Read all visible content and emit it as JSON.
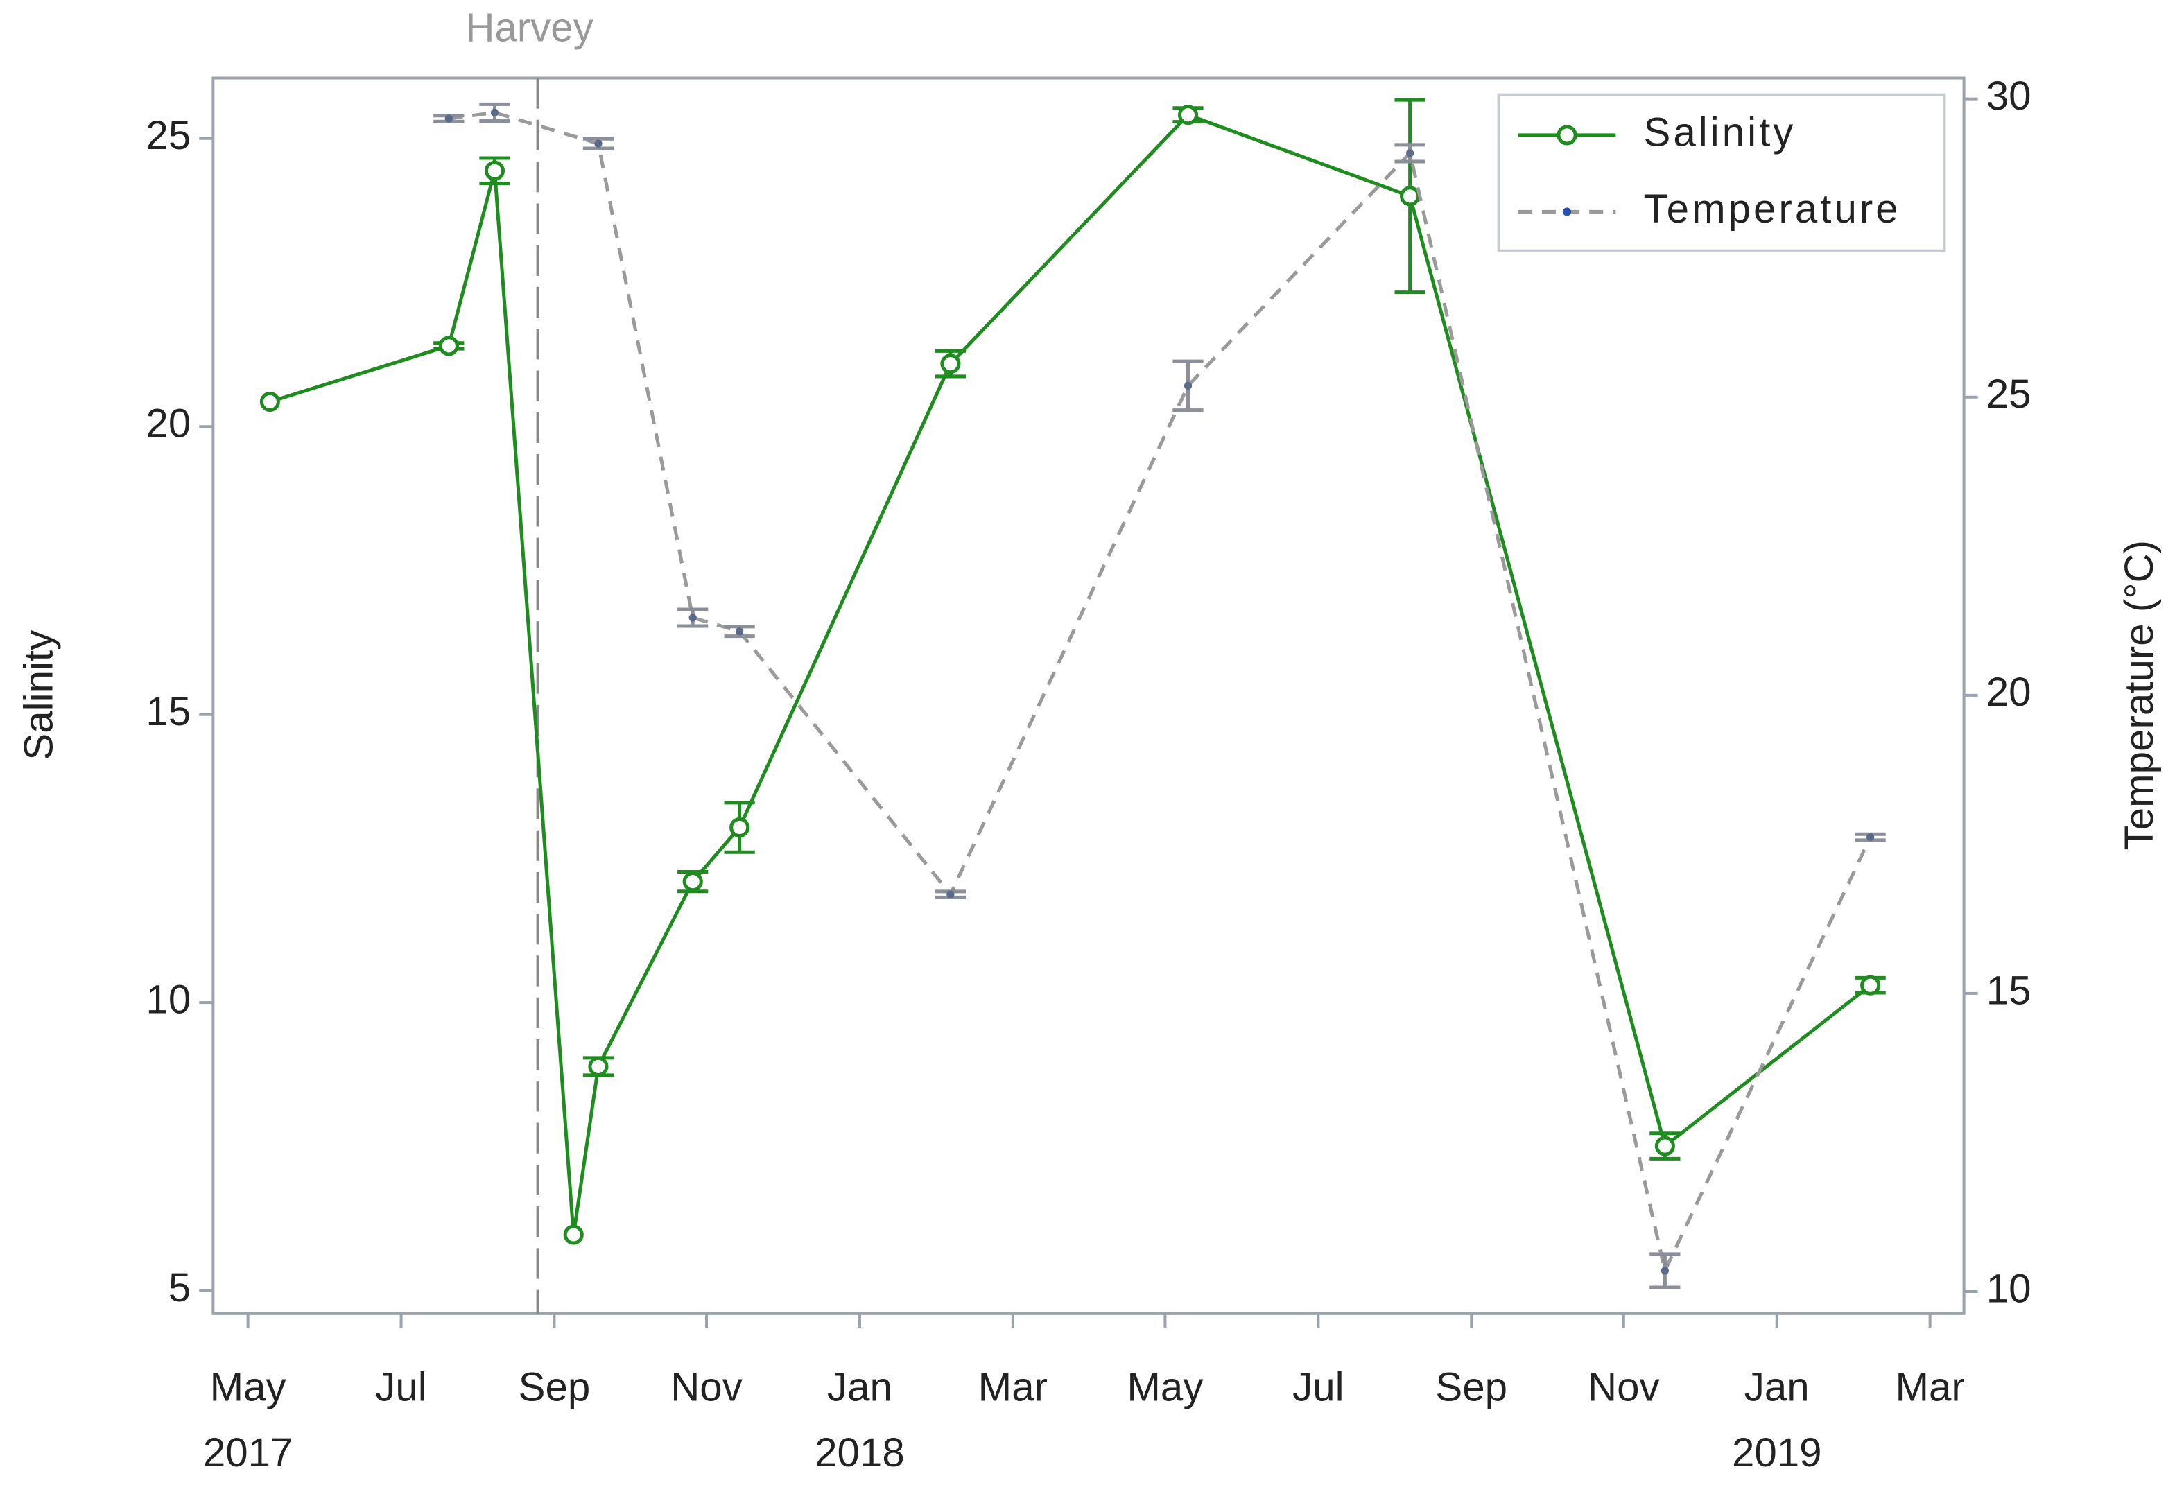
{
  "chart_data": {
    "type": "line",
    "xlim": [
      2017.295,
      2019.204
    ],
    "xticks": [
      {
        "value": 2017.333,
        "label": "May"
      },
      {
        "value": 2017.5,
        "label": "Jul"
      },
      {
        "value": 2017.667,
        "label": "Sep"
      },
      {
        "value": 2017.833,
        "label": "Nov"
      },
      {
        "value": 2018.0,
        "label": "Jan"
      },
      {
        "value": 2018.167,
        "label": "Mar"
      },
      {
        "value": 2018.333,
        "label": "May"
      },
      {
        "value": 2018.5,
        "label": "Jul"
      },
      {
        "value": 2018.667,
        "label": "Sep"
      },
      {
        "value": 2018.833,
        "label": "Nov"
      },
      {
        "value": 2019.0,
        "label": "Jan"
      },
      {
        "value": 2019.167,
        "label": "Mar"
      }
    ],
    "xyear_labels": [
      {
        "value": 2017.333,
        "label": "2017"
      },
      {
        "value": 2018.0,
        "label": "2018"
      },
      {
        "value": 2019.0,
        "label": "2019"
      }
    ],
    "ylabel": "Salinity",
    "ylim": [
      4.6,
      26.05
    ],
    "yticks": [
      5,
      10,
      15,
      20,
      25
    ],
    "y2label": "Temperature (°C)",
    "y2lim": [
      9.63,
      30.35
    ],
    "y2ticks": [
      10,
      15,
      20,
      25,
      30
    ],
    "legend": "top-right",
    "annotations": [
      {
        "x": 2017.649,
        "label": "Harvey"
      }
    ],
    "series": [
      {
        "name": "Salinity",
        "color": "#1e8c1e",
        "marker": "circle",
        "dash": false,
        "x": [
          2017.357,
          2017.552,
          2017.602,
          2017.688,
          2017.715,
          2017.818,
          2017.869,
          2018.099,
          2018.358,
          2018.6,
          2018.878,
          2019.102
        ],
        "values": [
          20.43,
          21.4,
          24.44,
          5.97,
          8.89,
          12.1,
          13.04,
          21.09,
          25.41,
          24.0,
          7.51,
          10.3
        ],
        "errors": [
          null,
          0.05,
          0.22,
          null,
          0.15,
          0.17,
          0.43,
          0.22,
          0.12,
          1.67,
          0.22,
          0.13
        ]
      },
      {
        "name": "Temperature",
        "color": "#9a9a9a",
        "marker": "dot",
        "marker_color": "#5a6a8a",
        "dash": true,
        "axis": "y2",
        "x": [
          2017.552,
          2017.602,
          2017.715,
          2017.818,
          2017.869,
          2018.099,
          2018.358,
          2018.6,
          2018.878,
          2019.102
        ],
        "values": [
          29.67,
          29.77,
          29.25,
          21.3,
          21.07,
          16.66,
          25.19,
          29.09,
          10.35,
          17.62
        ],
        "errors": [
          0.05,
          0.14,
          0.08,
          0.14,
          0.08,
          0.05,
          0.41,
          0.14,
          0.28,
          0.05
        ]
      }
    ]
  }
}
